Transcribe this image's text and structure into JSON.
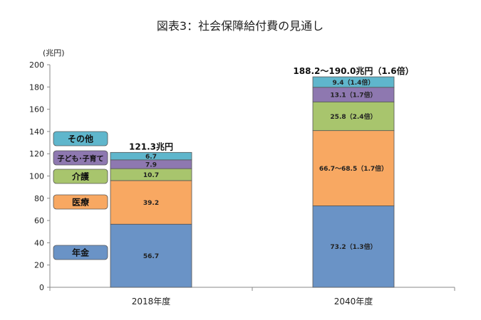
{
  "chart_data": {
    "type": "bar",
    "stacked": true,
    "title": "図表3：社会保障給付費の見通し",
    "ylabel": "(兆円)",
    "ylim": [
      0,
      200
    ],
    "yticks": [
      0,
      20,
      40,
      60,
      80,
      100,
      120,
      140,
      160,
      180,
      200
    ],
    "grid": false,
    "legend_placement": "left",
    "categories": [
      "2018年度",
      "2040年度"
    ],
    "totals": [
      "121.3兆円",
      "188.2〜190.0兆円（1.6倍）"
    ],
    "series": [
      {
        "name": "年金",
        "color": "#6a93c6",
        "values": [
          56.7,
          73.2
        ],
        "labels": [
          "56.7",
          "73.2（1.3倍）"
        ]
      },
      {
        "name": "医療",
        "color": "#f8a862",
        "values": [
          39.2,
          67.6
        ],
        "labels": [
          "39.2",
          "66.7〜68.5（1.7倍）"
        ]
      },
      {
        "name": "介護",
        "color": "#a8c56d",
        "values": [
          10.7,
          25.8
        ],
        "labels": [
          "10.7",
          "25.8（2.4倍）"
        ]
      },
      {
        "name": "子ども･子育て",
        "color": "#8e78b0",
        "values": [
          7.9,
          13.1
        ],
        "labels": [
          "7.9",
          "13.1（1.7倍）"
        ]
      },
      {
        "name": "その他",
        "color": "#5fb6cc",
        "values": [
          6.7,
          9.4
        ],
        "labels": [
          "6.7",
          "9.4（1.4倍）"
        ]
      }
    ]
  }
}
